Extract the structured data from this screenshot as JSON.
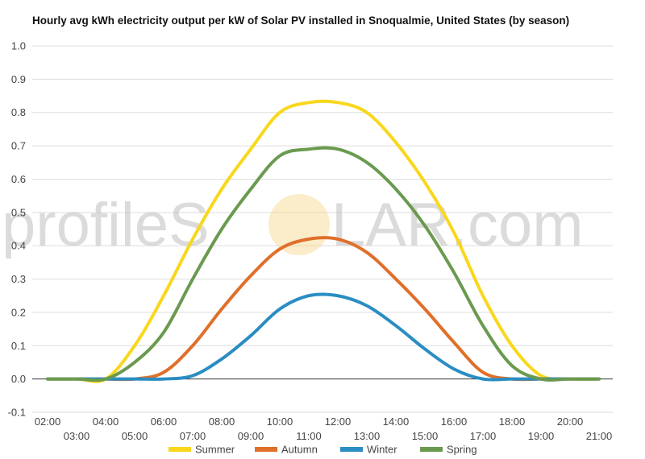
{
  "title": "Hourly avg kWh electricity output per kW of Solar PV installed in Snoqualmie, United States (by season)",
  "watermark": {
    "left_text": "profileS",
    "right_text": "LAR.com",
    "sun_color": "#f7d58a"
  },
  "chart_data": {
    "type": "line",
    "title": "Hourly avg kWh electricity output per kW of Solar PV installed in Snoqualmie, United States (by season)",
    "xlabel": "",
    "ylabel": "",
    "ylim": [
      -0.1,
      1.0
    ],
    "y_ticks": [
      "1.0",
      "0.9",
      "0.8",
      "0.7",
      "0.6",
      "0.5",
      "0.4",
      "0.3",
      "0.2",
      "0.1",
      "0.0",
      "-0.1"
    ],
    "x_ticks_top": [
      "02:00",
      "04:00",
      "06:00",
      "08:00",
      "10:00",
      "12:00",
      "14:00",
      "16:00",
      "18:00",
      "20:00"
    ],
    "x_ticks_bottom": [
      "03:00",
      "05:00",
      "07:00",
      "09:00",
      "11:00",
      "13:00",
      "15:00",
      "17:00",
      "19:00",
      "21:00"
    ],
    "x": [
      "02:00",
      "03:00",
      "04:00",
      "05:00",
      "06:00",
      "07:00",
      "08:00",
      "09:00",
      "10:00",
      "11:00",
      "12:00",
      "13:00",
      "14:00",
      "15:00",
      "16:00",
      "17:00",
      "18:00",
      "19:00",
      "20:00",
      "21:00"
    ],
    "grid": true,
    "legend_position": "bottom",
    "series": [
      {
        "name": "Summer",
        "color": "#f9d71c",
        "values": [
          0.0,
          0.0,
          0.0,
          0.1,
          0.25,
          0.42,
          0.57,
          0.69,
          0.8,
          0.83,
          0.83,
          0.8,
          0.71,
          0.59,
          0.44,
          0.25,
          0.1,
          0.01,
          0.0,
          0.0
        ]
      },
      {
        "name": "Autumn",
        "color": "#e06f2a",
        "values": [
          0.0,
          0.0,
          0.0,
          0.0,
          0.02,
          0.1,
          0.21,
          0.31,
          0.39,
          0.42,
          0.42,
          0.38,
          0.3,
          0.21,
          0.11,
          0.02,
          0.0,
          0.0,
          0.0,
          0.0
        ]
      },
      {
        "name": "Winter",
        "color": "#2a8dc3",
        "values": [
          0.0,
          0.0,
          0.0,
          0.0,
          0.0,
          0.01,
          0.06,
          0.13,
          0.21,
          0.25,
          0.25,
          0.22,
          0.16,
          0.09,
          0.03,
          0.0,
          0.0,
          0.0,
          0.0,
          0.0
        ]
      },
      {
        "name": "Spring",
        "color": "#6a9a4f",
        "values": [
          0.0,
          0.0,
          0.0,
          0.05,
          0.14,
          0.3,
          0.45,
          0.57,
          0.67,
          0.69,
          0.69,
          0.65,
          0.57,
          0.46,
          0.32,
          0.16,
          0.04,
          0.0,
          0.0,
          0.0
        ]
      }
    ]
  }
}
